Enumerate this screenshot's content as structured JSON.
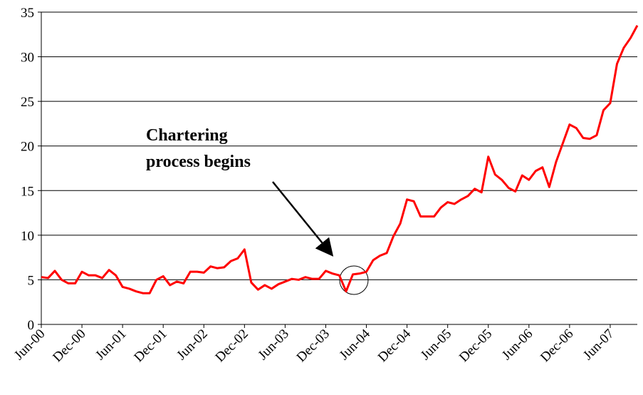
{
  "chart_data": {
    "type": "line",
    "categories": [
      "Jun-00",
      null,
      null,
      null,
      null,
      null,
      "Dec-00",
      null,
      null,
      null,
      null,
      null,
      "Jun-01",
      null,
      null,
      null,
      null,
      null,
      "Dec-01",
      null,
      null,
      null,
      null,
      null,
      "Jun-02",
      null,
      null,
      null,
      null,
      null,
      "Dec-02",
      null,
      null,
      null,
      null,
      null,
      "Jun-03",
      null,
      null,
      null,
      null,
      null,
      "Dec-03",
      null,
      null,
      null,
      null,
      null,
      "Jun-04",
      null,
      null,
      null,
      null,
      null,
      "Dec-04",
      null,
      null,
      null,
      null,
      null,
      "Jun-05",
      null,
      null,
      null,
      null,
      null,
      "Dec-05",
      null,
      null,
      null,
      null,
      null,
      "Jun-06",
      null,
      null,
      null,
      null,
      null,
      "Dec-06",
      null,
      null,
      null,
      null,
      null,
      "Jun-07",
      null,
      null,
      null,
      null
    ],
    "series": [
      {
        "name": null,
        "color": "#ff0000",
        "values": [
          5.3,
          5.2,
          6.0,
          5.0,
          4.6,
          4.6,
          5.9,
          5.5,
          5.5,
          5.2,
          6.1,
          5.5,
          4.2,
          4.0,
          3.7,
          3.5,
          3.5,
          5.0,
          5.4,
          4.4,
          4.8,
          4.6,
          5.9,
          5.9,
          5.8,
          6.5,
          6.3,
          6.4,
          7.1,
          7.4,
          8.4,
          4.7,
          3.9,
          4.4,
          4.0,
          4.5,
          4.8,
          5.1,
          5.0,
          5.3,
          5.1,
          5.1,
          6.0,
          5.7,
          5.5,
          3.7,
          5.6,
          5.7,
          5.9,
          7.2,
          7.7,
          8.0,
          9.9,
          11.3,
          14.0,
          13.8,
          12.1,
          12.1,
          12.1,
          13.1,
          13.7,
          13.5,
          14.0,
          14.4,
          15.2,
          14.8,
          18.8,
          16.8,
          16.2,
          15.3,
          14.9,
          16.7,
          16.2,
          17.2,
          17.6,
          15.4,
          18.2,
          20.3,
          22.4,
          22.0,
          20.9,
          20.8,
          21.2,
          24.0,
          24.8,
          29.2,
          31.0,
          32.1,
          33.5
        ]
      }
    ],
    "ylim": [
      0,
      35
    ],
    "yticks": [
      0,
      5,
      10,
      15,
      20,
      25,
      30,
      35
    ],
    "grid": true,
    "annotation": [
      "Chartering",
      "process begins"
    ]
  }
}
